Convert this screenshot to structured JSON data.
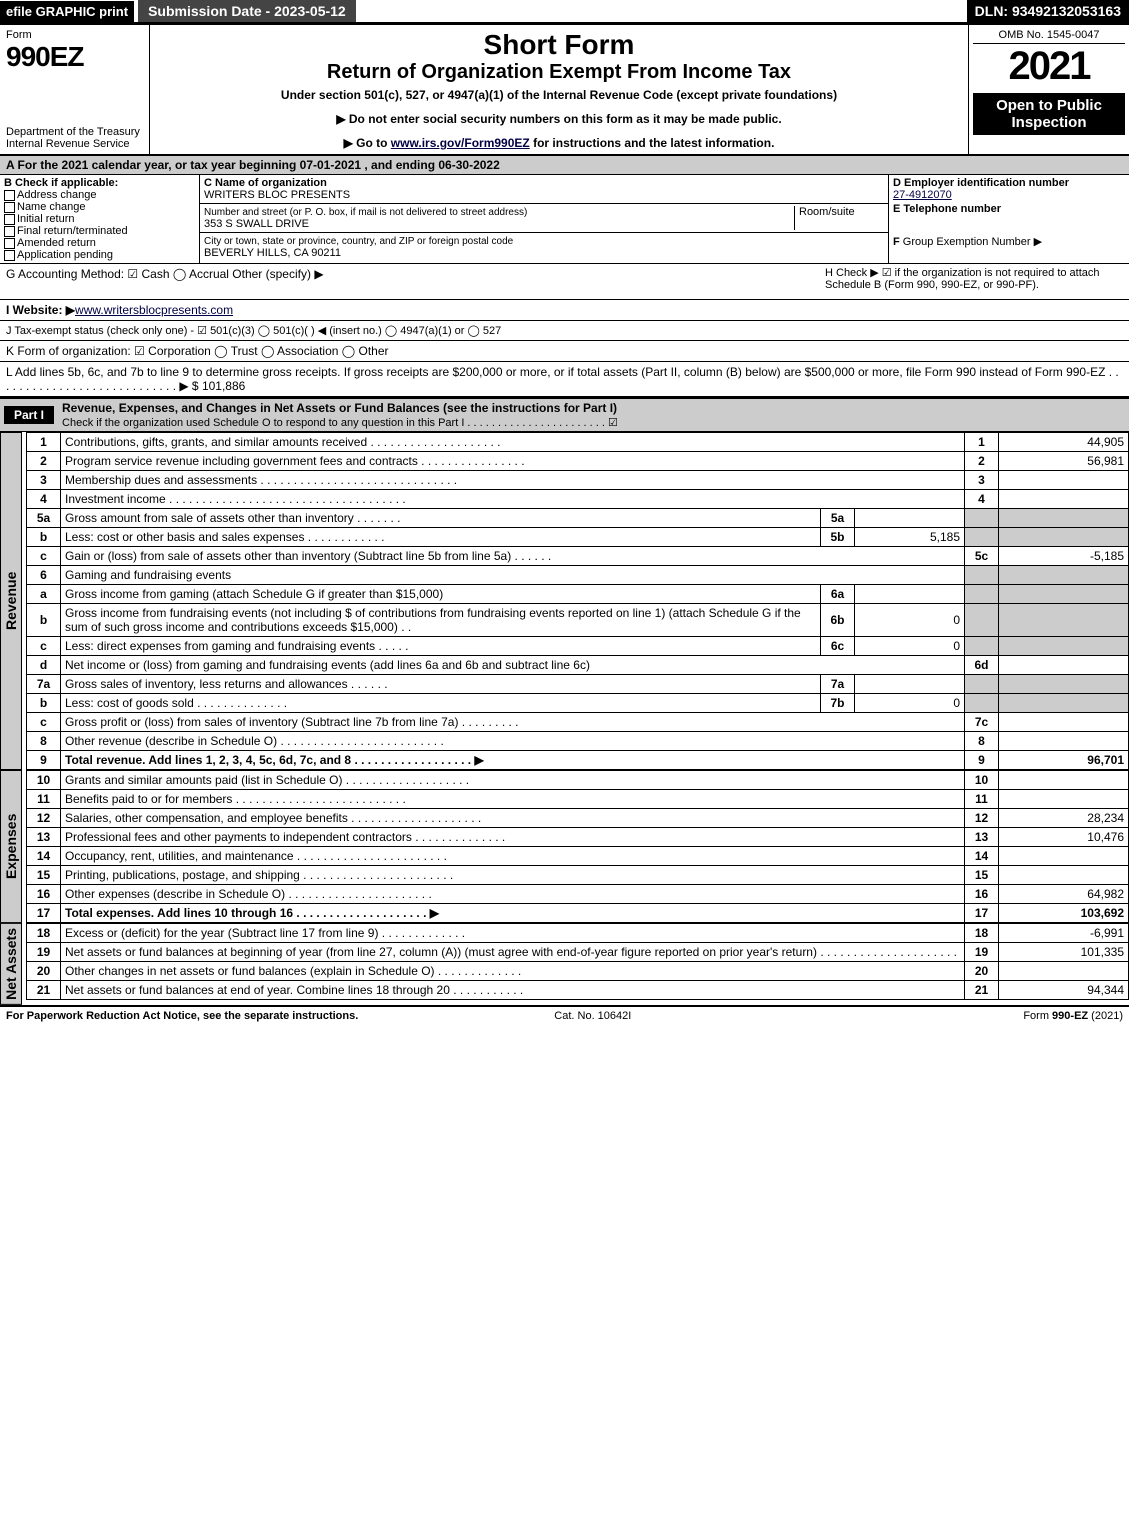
{
  "top": {
    "efile": "efile GRAPHIC print",
    "subdate": "Submission Date - 2023-05-12",
    "dln": "DLN: 93492132053163"
  },
  "hdr": {
    "form": "Form",
    "formno": "990EZ",
    "dept": "Department of the Treasury\nInternal Revenue Service",
    "title1": "Short Form",
    "title2": "Return of Organization Exempt From Income Tax",
    "sub": "Under section 501(c), 527, or 4947(a)(1) of the Internal Revenue Code (except private foundations)",
    "note1": "▶ Do not enter social security numbers on this form as it may be made public.",
    "note2_pre": "▶ Go to ",
    "note2_link": "www.irs.gov/Form990EZ",
    "note2_post": " for instructions and the latest information.",
    "omb": "OMB No. 1545-0047",
    "year": "2021",
    "open": "Open to Public Inspection"
  },
  "A": "A  For the 2021 calendar year, or tax year beginning 07-01-2021 , and ending 06-30-2022",
  "B": {
    "label": "B  Check if applicable:",
    "items": [
      "Address change",
      "Name change",
      "Initial return",
      "Final return/terminated",
      "Amended return",
      "Application pending"
    ]
  },
  "C": {
    "namelab": "C Name of organization",
    "name": "WRITERS BLOC PRESENTS",
    "addrlab": "Number and street (or P. O. box, if mail is not delivered to street address)",
    "room": "Room/suite",
    "addr": "353 S SWALL DRIVE",
    "citylab": "City or town, state or province, country, and ZIP or foreign postal code",
    "city": "BEVERLY HILLS, CA   90211"
  },
  "D": {
    "einlab": "D Employer identification number",
    "ein": "27-4912070",
    "tellab": "E Telephone number",
    "grplab_pre": "F",
    "grplab": " Group Exemption Number  ▶"
  },
  "G": "G Accounting Method:   ☑ Cash   ◯ Accrual   Other (specify) ▶",
  "H": "H   Check ▶  ☑  if the organization is not required to attach Schedule B (Form 990, 990-EZ, or 990-PF).",
  "I": {
    "lab": "I Website: ▶",
    "val": "www.writersblocpresents.com"
  },
  "J": "J Tax-exempt status (check only one) -  ☑ 501(c)(3)  ◯  501(c)(   ) ◀ (insert no.)  ◯  4947(a)(1) or  ◯  527",
  "K": "K Form of organization:   ☑ Corporation   ◯ Trust   ◯ Association   ◯ Other",
  "L": {
    "text": "L Add lines 5b, 6c, and 7b to line 9 to determine gross receipts. If gross receipts are $200,000 or more, or if total assets (Part II, column (B) below) are $500,000 or more, file Form 990 instead of Form 990-EZ  .  .  .  .  .  .  .  .  .  .  .  .  .  .  .  .  .  .  .  .  .  .  .  .  .  .  .  .   ▶ $",
    "val": "101,886"
  },
  "P1": {
    "lab": "Part I",
    "title": "Revenue, Expenses, and Changes in Net Assets or Fund Balances (see the instructions for Part I)",
    "sub": "Check if the organization used Schedule O to respond to any question in this Part I .  .  .  .  .  .  .  .  .  .  .  .  .  .  .  .  .  .  .  .  .  .  .   ☑"
  },
  "side": {
    "rev": "Revenue",
    "exp": "Expenses",
    "net": "Net Assets"
  },
  "rev": [
    {
      "n": "1",
      "d": "Contributions, gifts, grants, and similar amounts received  .  .  .  .  .  .  .  .  .  .  .  .  .  .  .  .  .  .  .  .",
      "l": "1",
      "v": "44,905"
    },
    {
      "n": "2",
      "d": "Program service revenue including government fees and contracts  .  .  .  .  .  .  .  .  .  .  .  .  .  .  .  .",
      "l": "2",
      "v": "56,981"
    },
    {
      "n": "3",
      "d": "Membership dues and assessments  .  .  .  .  .  .  .  .  .  .  .  .  .  .  .  .  .  .  .  .  .  .  .  .  .  .  .  .  .  .",
      "l": "3",
      "v": ""
    },
    {
      "n": "4",
      "d": "Investment income  .  .  .  .  .  .  .  .  .  .  .  .  .  .  .  .  .  .  .  .  .  .  .  .  .  .  .  .  .  .  .  .  .  .  .  .",
      "l": "4",
      "v": ""
    },
    {
      "n": "5a",
      "d": "Gross amount from sale of assets other than inventory  .  .  .  .  .  .  .",
      "sl": "5a",
      "sv": ""
    },
    {
      "n": "b",
      "d": "Less: cost or other basis and sales expenses  .  .  .  .  .  .  .  .  .  .  .  .",
      "sl": "5b",
      "sv": "5,185"
    },
    {
      "n": "c",
      "d": "Gain or (loss) from sale of assets other than inventory (Subtract line 5b from line 5a)  .  .  .  .  .  .",
      "l": "5c",
      "v": "-5,185"
    },
    {
      "n": "6",
      "d": "Gaming and fundraising events"
    },
    {
      "n": "a",
      "d": "Gross income from gaming (attach Schedule G if greater than $15,000)",
      "sl": "6a",
      "sv": ""
    },
    {
      "n": "b",
      "d": "Gross income from fundraising events (not including $                             of contributions from fundraising events reported on line 1) (attach Schedule G if the sum of such gross income and contributions exceeds $15,000)     .   .",
      "sl": "6b",
      "sv": "0"
    },
    {
      "n": "c",
      "d": "Less: direct expenses from gaming and fundraising events  .  .  .  .  .",
      "sl": "6c",
      "sv": "0"
    },
    {
      "n": "d",
      "d": "Net income or (loss) from gaming and fundraising events (add lines 6a and 6b and subtract line 6c)",
      "l": "6d",
      "v": ""
    },
    {
      "n": "7a",
      "d": "Gross sales of inventory, less returns and allowances  .  .  .  .  .  .",
      "sl": "7a",
      "sv": ""
    },
    {
      "n": "b",
      "d": "Less: cost of goods sold             .  .  .  .  .  .  .  .  .  .  .  .  .  .",
      "sl": "7b",
      "sv": "0"
    },
    {
      "n": "c",
      "d": "Gross profit or (loss) from sales of inventory (Subtract line 7b from line 7a)  .  .  .  .  .  .  .  .  .",
      "l": "7c",
      "v": ""
    },
    {
      "n": "8",
      "d": "Other revenue (describe in Schedule O)  .  .  .  .  .  .  .  .  .  .  .  .  .  .  .  .  .  .  .  .  .  .  .  .  .",
      "l": "8",
      "v": ""
    },
    {
      "n": "9",
      "d": "Total revenue. Add lines 1, 2, 3, 4, 5c, 6d, 7c, and 8  .  .  .  .  .  .  .  .  .  .  .  .  .  .  .  .  .  .   ▶",
      "l": "9",
      "v": "96,701",
      "bold": true
    }
  ],
  "exp": [
    {
      "n": "10",
      "d": "Grants and similar amounts paid (list in Schedule O)  .  .  .  .  .  .  .  .  .  .  .  .  .  .  .  .  .  .  .",
      "l": "10",
      "v": ""
    },
    {
      "n": "11",
      "d": "Benefits paid to or for members       .  .  .  .  .  .  .  .  .  .  .  .  .  .  .  .  .  .  .  .  .  .  .  .  .  .",
      "l": "11",
      "v": ""
    },
    {
      "n": "12",
      "d": "Salaries, other compensation, and employee benefits  .  .  .  .  .  .  .  .  .  .  .  .  .  .  .  .  .  .  .  .",
      "l": "12",
      "v": "28,234"
    },
    {
      "n": "13",
      "d": "Professional fees and other payments to independent contractors  .  .  .  .  .  .  .  .  .  .  .  .  .  .",
      "l": "13",
      "v": "10,476"
    },
    {
      "n": "14",
      "d": "Occupancy, rent, utilities, and maintenance  .  .  .  .  .  .  .  .  .  .  .  .  .  .  .  .  .  .  .  .  .  .  .",
      "l": "14",
      "v": ""
    },
    {
      "n": "15",
      "d": "Printing, publications, postage, and shipping .  .  .  .  .  .  .  .  .  .  .  .  .  .  .  .  .  .  .  .  .  .  .",
      "l": "15",
      "v": ""
    },
    {
      "n": "16",
      "d": "Other expenses (describe in Schedule O)       .  .  .  .  .  .  .  .  .  .  .  .  .  .  .  .  .  .  .  .  .  .",
      "l": "16",
      "v": "64,982"
    },
    {
      "n": "17",
      "d": "Total expenses. Add lines 10 through 16       .  .  .  .  .  .  .  .  .  .  .  .  .  .  .  .  .  .  .  .   ▶",
      "l": "17",
      "v": "103,692",
      "bold": true
    }
  ],
  "net": [
    {
      "n": "18",
      "d": "Excess or (deficit) for the year (Subtract line 17 from line 9)        .  .  .  .  .  .  .  .  .  .  .  .  .",
      "l": "18",
      "v": "-6,991"
    },
    {
      "n": "19",
      "d": "Net assets or fund balances at beginning of year (from line 27, column (A)) (must agree with end-of-year figure reported on prior year's return)  .  .  .  .  .  .  .  .  .  .  .  .  .  .  .  .  .  .  .  .  .",
      "l": "19",
      "v": "101,335"
    },
    {
      "n": "20",
      "d": "Other changes in net assets or fund balances (explain in Schedule O)  .  .  .  .  .  .  .  .  .  .  .  .  .",
      "l": "20",
      "v": ""
    },
    {
      "n": "21",
      "d": "Net assets or fund balances at end of year. Combine lines 18 through 20  .  .  .  .  .  .  .  .  .  .  .",
      "l": "21",
      "v": "94,344"
    }
  ],
  "foot": {
    "l": "For Paperwork Reduction Act Notice, see the separate instructions.",
    "m": "Cat. No. 10642I",
    "r": "Form 990-EZ (2021)"
  }
}
